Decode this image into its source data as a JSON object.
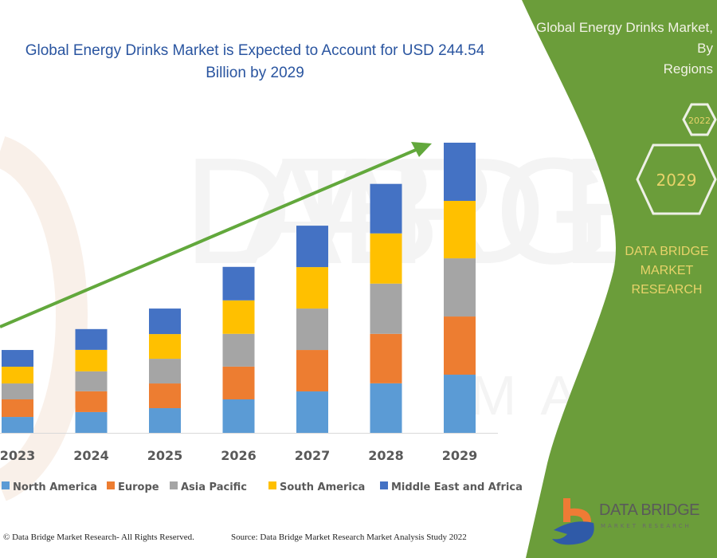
{
  "title": "Global Energy Drinks Market is Expected to Account for USD 244.54 Billion by 2029",
  "title_line1": "Global Energy Drinks Market is Expected to Account for USD 244.54",
  "title_line2": "Billion by 2029",
  "panel": {
    "title_line1": "Global Energy Drinks Market, By",
    "title_line2": "Regions",
    "hex_years": [
      "2029",
      "2022"
    ],
    "brand_line1": "DATA BRIDGE MARKET",
    "brand_line2": "RESEARCH"
  },
  "footer": {
    "copyright": "© Data Bridge Market Research- All Rights Reserved.",
    "source": "Source: Data Bridge Market Research Market Analysis Study 2022"
  },
  "logo": {
    "name": "DATA BRIDGE",
    "sub": "MARKET RESEARCH"
  },
  "colors": {
    "panel_green": "#6b9d3a",
    "arrow_green": "#62a83c",
    "title_blue": "#2a55a0"
  },
  "chart_data": {
    "type": "bar",
    "stacked": true,
    "categories": [
      "2023",
      "2024",
      "2025",
      "2026",
      "2027",
      "2028",
      "2029"
    ],
    "series": [
      {
        "name": "North America",
        "color": "#5b9bd5",
        "values": [
          13.4,
          17.5,
          20.8,
          28.2,
          34.9,
          41.7,
          49.0
        ]
      },
      {
        "name": "Europe",
        "color": "#ed7d31",
        "values": [
          14.8,
          17.5,
          20.8,
          27.6,
          34.9,
          41.7,
          49.0
        ]
      },
      {
        "name": "Asia Pacific",
        "color": "#a5a5a5",
        "values": [
          13.4,
          16.8,
          20.8,
          27.6,
          34.9,
          42.3,
          49.0
        ]
      },
      {
        "name": "South America",
        "color": "#ffc000",
        "values": [
          14.1,
          18.1,
          20.8,
          28.2,
          34.9,
          42.3,
          48.4
        ]
      },
      {
        "name": "Middle East and Africa",
        "color": "#4472c4",
        "values": [
          14.1,
          17.5,
          21.5,
          28.2,
          34.9,
          41.7,
          49.0
        ]
      }
    ],
    "ylabel": "",
    "xlabel": "",
    "legend": "bottom",
    "grid": false,
    "annotation": "upward trend arrow"
  }
}
